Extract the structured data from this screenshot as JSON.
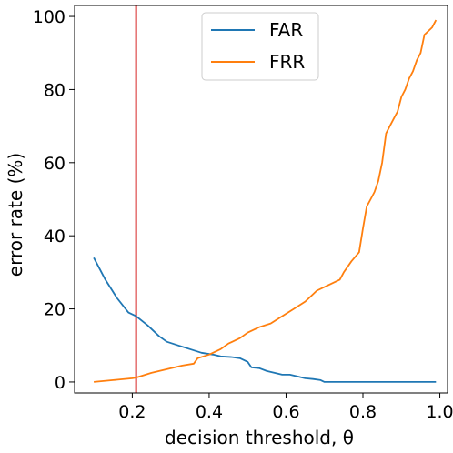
{
  "chart_data": {
    "type": "line",
    "xlabel": "decision threshold, θ",
    "ylabel": "error rate (%)",
    "xlim": [
      0.05,
      1.02
    ],
    "ylim": [
      -3,
      103
    ],
    "xticks": [
      0.2,
      0.4,
      0.6,
      0.8,
      1.0
    ],
    "xtick_labels": [
      "0.2",
      "0.4",
      "0.6",
      "0.8",
      "1.0"
    ],
    "yticks": [
      0,
      20,
      40,
      60,
      80,
      100
    ],
    "ytick_labels": [
      "0",
      "20",
      "40",
      "60",
      "80",
      "100"
    ],
    "grid": false,
    "legend_position": "top-center",
    "series": [
      {
        "name": "FAR",
        "color": "#1f77b4",
        "x": [
          0.1,
          0.13,
          0.16,
          0.19,
          0.21,
          0.24,
          0.27,
          0.29,
          0.32,
          0.35,
          0.38,
          0.41,
          0.43,
          0.46,
          0.48,
          0.5,
          0.51,
          0.53,
          0.55,
          0.57,
          0.59,
          0.61,
          0.63,
          0.65,
          0.67,
          0.69,
          0.7,
          0.75,
          0.8,
          0.85,
          0.9,
          0.95,
          0.99
        ],
        "y": [
          34,
          28,
          23,
          19,
          18,
          15.5,
          12.5,
          11,
          10,
          9,
          8,
          7.5,
          7,
          6.8,
          6.5,
          5.5,
          4,
          3.8,
          3,
          2.5,
          2,
          2,
          1.5,
          1,
          0.8,
          0.5,
          0,
          0,
          0,
          0,
          0,
          0,
          0
        ]
      },
      {
        "name": "FRR",
        "color": "#ff7f0e",
        "x": [
          0.1,
          0.15,
          0.2,
          0.21,
          0.25,
          0.29,
          0.33,
          0.36,
          0.37,
          0.4,
          0.43,
          0.45,
          0.48,
          0.5,
          0.53,
          0.56,
          0.59,
          0.62,
          0.65,
          0.67,
          0.68,
          0.71,
          0.74,
          0.75,
          0.77,
          0.79,
          0.8,
          0.81,
          0.82,
          0.83,
          0.84,
          0.85,
          0.86,
          0.87,
          0.88,
          0.89,
          0.9,
          0.91,
          0.92,
          0.93,
          0.94,
          0.95,
          0.96,
          0.97,
          0.98,
          0.99
        ],
        "y": [
          0,
          0.5,
          1,
          1.2,
          2.5,
          3.5,
          4.5,
          5,
          6.5,
          7.5,
          9,
          10.5,
          12,
          13.5,
          15,
          16,
          18,
          20,
          22,
          24,
          25,
          26.5,
          28,
          30,
          33,
          35.5,
          42,
          48,
          50,
          52,
          55,
          60,
          68,
          70,
          72,
          74,
          78,
          80,
          83,
          85,
          88,
          90,
          95,
          96,
          97,
          99
        ]
      }
    ],
    "annotations": [
      {
        "type": "vline",
        "x": 0.21,
        "color": "#d62728"
      }
    ]
  }
}
